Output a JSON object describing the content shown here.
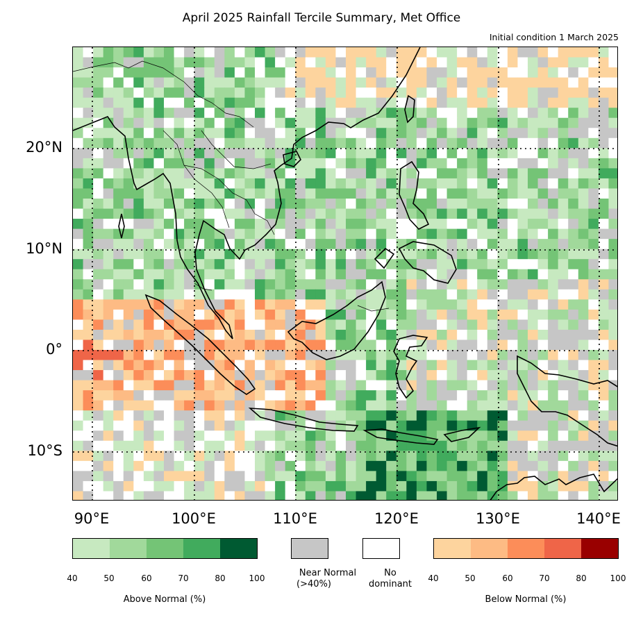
{
  "title": "April 2025 Rainfall Tercile Summary, Met Office",
  "subtitle": "Initial condition 1 March 2025",
  "lat_labels": [
    "20°N",
    "10°N",
    "0°",
    "10°S"
  ],
  "lon_labels": [
    "90°E",
    "100°E",
    "110°E",
    "120°E",
    "130°E",
    "140°E"
  ],
  "colors": {
    "above": [
      "#c7e9c0",
      "#a1d99b",
      "#74c476",
      "#41ab5d",
      "#005a32"
    ],
    "below": [
      "#fdd49e",
      "#fdbb84",
      "#fc8d59",
      "#ef6548",
      "#990000"
    ],
    "near_normal": "#c6c6c6",
    "no_dominant": "#ffffff",
    "coast": "#000000"
  },
  "legend": {
    "above_ticks": [
      "40",
      "50",
      "60",
      "70",
      "80",
      "100"
    ],
    "above_caption": "Above Normal (%)",
    "near_normal_caption_1": "Near Normal",
    "near_normal_caption_2": "(>40%)",
    "no_dominant_caption_1": "No",
    "no_dominant_caption_2": "dominant",
    "below_ticks": [
      "40",
      "50",
      "60",
      "70",
      "80",
      "100"
    ],
    "below_caption": "Below Normal (%)"
  }
}
